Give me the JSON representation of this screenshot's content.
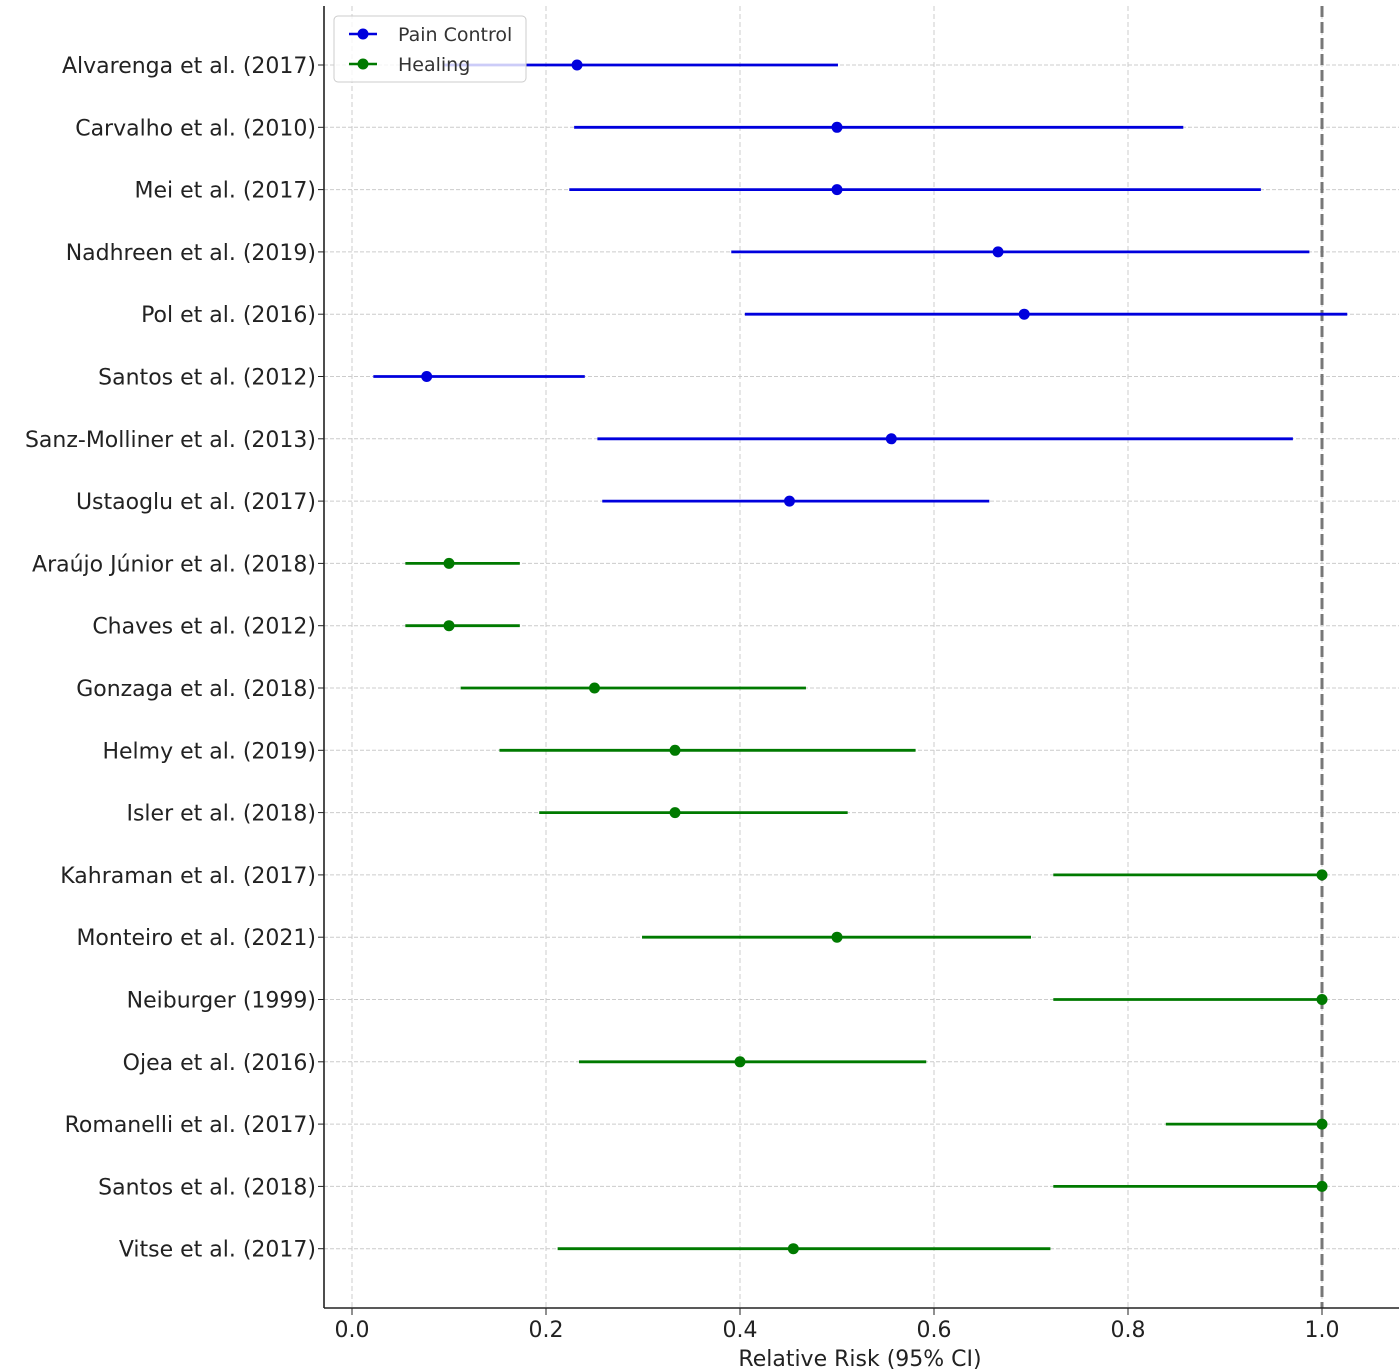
{
  "chart_data": {
    "type": "forest",
    "title": "",
    "xlabel": "Relative Risk (95% CI)",
    "ylabel": "",
    "xlim": [
      -0.03,
      1.08
    ],
    "xticks": [
      "0.0",
      "0.2",
      "0.4",
      "0.6",
      "0.8",
      "1.0"
    ],
    "xtick_values": [
      0,
      0.2,
      0.4,
      0.6,
      0.8,
      1.0
    ],
    "grid": true,
    "reference_line": 1.0,
    "legend": {
      "placement": "top-left",
      "entries": [
        "Pain Control",
        "Healing"
      ]
    },
    "colors": {
      "Pain Control": "#0000dd",
      "Healing": "#007a00",
      "reference": "#777777"
    },
    "studies": [
      {
        "label": "Alvarenga et al. (2017)",
        "group": "Pain Control",
        "rr": 0.232,
        "lower": 0.094,
        "upper": 0.501
      },
      {
        "label": "Carvalho et al. (2010)",
        "group": "Pain Control",
        "rr": 0.5,
        "lower": 0.229,
        "upper": 0.857
      },
      {
        "label": "Mei et al. (2017)",
        "group": "Pain Control",
        "rr": 0.5,
        "lower": 0.224,
        "upper": 0.937
      },
      {
        "label": "Nadhreen et al. (2019)",
        "group": "Pain Control",
        "rr": 0.666,
        "lower": 0.391,
        "upper": 0.987
      },
      {
        "label": "Pol et al. (2016)",
        "group": "Pain Control",
        "rr": 0.693,
        "lower": 0.405,
        "upper": 1.026
      },
      {
        "label": "Santos et al. (2012)",
        "group": "Pain Control",
        "rr": 0.077,
        "lower": 0.022,
        "upper": 0.24
      },
      {
        "label": "Sanz-Molliner et al. (2013)",
        "group": "Pain Control",
        "rr": 0.556,
        "lower": 0.253,
        "upper": 0.97
      },
      {
        "label": "Ustaoglu et al. (2017)",
        "group": "Pain Control",
        "rr": 0.451,
        "lower": 0.258,
        "upper": 0.657
      },
      {
        "label": "Araújo Júnior et al. (2018)",
        "group": "Healing",
        "rr": 0.1,
        "lower": 0.055,
        "upper": 0.173
      },
      {
        "label": "Chaves et al. (2012)",
        "group": "Healing",
        "rr": 0.1,
        "lower": 0.055,
        "upper": 0.173
      },
      {
        "label": "Gonzaga et al. (2018)",
        "group": "Healing",
        "rr": 0.25,
        "lower": 0.112,
        "upper": 0.468
      },
      {
        "label": "Helmy et al. (2019)",
        "group": "Healing",
        "rr": 0.333,
        "lower": 0.152,
        "upper": 0.581
      },
      {
        "label": "Isler et al. (2018)",
        "group": "Healing",
        "rr": 0.333,
        "lower": 0.193,
        "upper": 0.511
      },
      {
        "label": "Kahraman et al. (2017)",
        "group": "Healing",
        "rr": 1.0,
        "lower": 0.723,
        "upper": 1.0
      },
      {
        "label": "Monteiro et al. (2021)",
        "group": "Healing",
        "rr": 0.5,
        "lower": 0.299,
        "upper": 0.7
      },
      {
        "label": "Neiburger (1999)",
        "group": "Healing",
        "rr": 1.0,
        "lower": 0.723,
        "upper": 1.0
      },
      {
        "label": "Ojea et al. (2016)",
        "group": "Healing",
        "rr": 0.4,
        "lower": 0.234,
        "upper": 0.592
      },
      {
        "label": "Romanelli et al. (2017)",
        "group": "Healing",
        "rr": 1.0,
        "lower": 0.839,
        "upper": 1.0
      },
      {
        "label": "Santos et al. (2018)",
        "group": "Healing",
        "rr": 1.0,
        "lower": 0.723,
        "upper": 1.0
      },
      {
        "label": "Vitse et al. (2017)",
        "group": "Healing",
        "rr": 0.455,
        "lower": 0.212,
        "upper": 0.72
      }
    ]
  }
}
